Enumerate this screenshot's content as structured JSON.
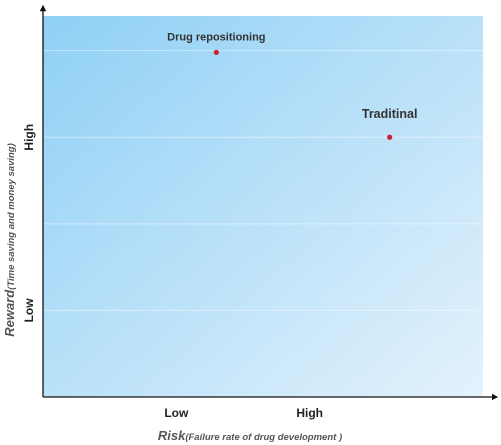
{
  "chart_data": {
    "type": "scatter",
    "title": "",
    "xlabel": {
      "main": "Risk",
      "detail": "(Failure rate of drug development )"
    },
    "ylabel": {
      "main": "Reward",
      "detail": "(Time saving and money saving)"
    },
    "x_ticks": [
      {
        "label": "Low",
        "value": 1
      },
      {
        "label": "High",
        "value": 2
      }
    ],
    "y_ticks": [
      {
        "label": "Low",
        "value": 1
      },
      {
        "label": "High",
        "value": 3
      }
    ],
    "xlim": [
      0,
      3.3
    ],
    "ylim": [
      0,
      4.4
    ],
    "grid": "horizontal",
    "points": [
      {
        "label": "Drug repositioning",
        "x": 1.3,
        "y": 3.98
      },
      {
        "label": "Traditinal",
        "x": 2.6,
        "y": 3.0
      }
    ],
    "colors": {
      "point": "#cc2233",
      "background_start": "#8fd0f5",
      "background_end": "#e4f2fc"
    }
  }
}
